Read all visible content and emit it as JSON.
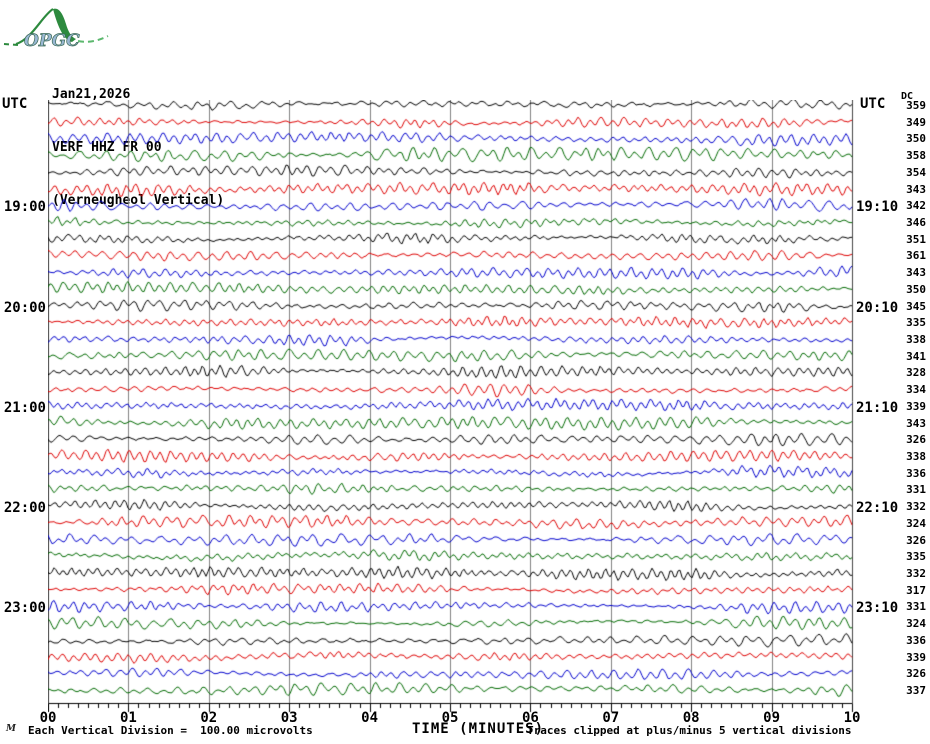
{
  "logo": {
    "text": "OPGC"
  },
  "header": {
    "date": "Jan21,2026",
    "station": "VERF HHZ FR 00",
    "description": "(Verneugheol Vertical)"
  },
  "left_axis": {
    "label": "UTC",
    "hour_labels": [
      {
        "row": 6,
        "text": "19:00"
      },
      {
        "row": 12,
        "text": "20:00"
      },
      {
        "row": 18,
        "text": "21:00"
      },
      {
        "row": 24,
        "text": "22:00"
      },
      {
        "row": 30,
        "text": "23:00"
      }
    ]
  },
  "right_axis": {
    "label": "UTC",
    "dc_label": "DC",
    "hour_labels": [
      {
        "row": 6,
        "text": "19:10"
      },
      {
        "row": 12,
        "text": "20:10"
      },
      {
        "row": 18,
        "text": "21:10"
      },
      {
        "row": 24,
        "text": "22:10"
      },
      {
        "row": 30,
        "text": "23:10"
      }
    ]
  },
  "x_axis": {
    "title": "TIME (MINUTES)",
    "tick_labels": [
      "00",
      "01",
      "02",
      "03",
      "04",
      "05",
      "06",
      "07",
      "08",
      "09",
      "10"
    ],
    "minor_ticks_per_division": 7
  },
  "footer": {
    "corner_mark": "M",
    "scale_note": "Each Vertical Division =  100.00 microvolts",
    "clip_note": "Traces clipped at plus/minus 5 vertical divisions"
  },
  "chart_data": {
    "type": "line",
    "subtype": "helicorder-seismogram",
    "title": "VERF HHZ FR 00 (Verneugheol Vertical) Jan21,2026",
    "xlabel": "TIME (MINUTES)",
    "x_range_minutes": [
      0,
      10
    ],
    "minutes_per_trace": 10,
    "num_traces": 36,
    "grid": true,
    "grid_color": "#808080",
    "vertical_division_microvolts": 100.0,
    "clip_divisions": 5,
    "trace_color_cycle": [
      "#000000",
      "#dd0000",
      "#0000cc",
      "#006a00"
    ],
    "traces": [
      {
        "start_utc": "18:00",
        "dc": 359,
        "color": "black"
      },
      {
        "start_utc": "18:10",
        "dc": 349,
        "color": "red"
      },
      {
        "start_utc": "18:20",
        "dc": 350,
        "color": "blue"
      },
      {
        "start_utc": "18:30",
        "dc": 358,
        "color": "green"
      },
      {
        "start_utc": "18:40",
        "dc": 354,
        "color": "black"
      },
      {
        "start_utc": "18:50",
        "dc": 343,
        "color": "red"
      },
      {
        "start_utc": "19:00",
        "dc": 342,
        "color": "blue"
      },
      {
        "start_utc": "19:10",
        "dc": 346,
        "color": "green"
      },
      {
        "start_utc": "19:20",
        "dc": 351,
        "color": "black"
      },
      {
        "start_utc": "19:30",
        "dc": 361,
        "color": "red"
      },
      {
        "start_utc": "19:40",
        "dc": 343,
        "color": "blue"
      },
      {
        "start_utc": "19:50",
        "dc": 350,
        "color": "green"
      },
      {
        "start_utc": "20:00",
        "dc": 345,
        "color": "black"
      },
      {
        "start_utc": "20:10",
        "dc": 335,
        "color": "red"
      },
      {
        "start_utc": "20:20",
        "dc": 338,
        "color": "blue"
      },
      {
        "start_utc": "20:30",
        "dc": 341,
        "color": "green"
      },
      {
        "start_utc": "20:40",
        "dc": 328,
        "color": "black"
      },
      {
        "start_utc": "20:50",
        "dc": 334,
        "color": "red"
      },
      {
        "start_utc": "21:00",
        "dc": 339,
        "color": "blue"
      },
      {
        "start_utc": "21:10",
        "dc": 343,
        "color": "green"
      },
      {
        "start_utc": "21:20",
        "dc": 326,
        "color": "black"
      },
      {
        "start_utc": "21:30",
        "dc": 338,
        "color": "red"
      },
      {
        "start_utc": "21:40",
        "dc": 336,
        "color": "blue"
      },
      {
        "start_utc": "21:50",
        "dc": 331,
        "color": "green"
      },
      {
        "start_utc": "22:00",
        "dc": 332,
        "color": "black"
      },
      {
        "start_utc": "22:10",
        "dc": 324,
        "color": "red"
      },
      {
        "start_utc": "22:20",
        "dc": 326,
        "color": "blue"
      },
      {
        "start_utc": "22:30",
        "dc": 335,
        "color": "green"
      },
      {
        "start_utc": "22:40",
        "dc": 332,
        "color": "black"
      },
      {
        "start_utc": "22:50",
        "dc": 317,
        "color": "red"
      },
      {
        "start_utc": "23:00",
        "dc": 331,
        "color": "blue"
      },
      {
        "start_utc": "23:10",
        "dc": 324,
        "color": "green"
      },
      {
        "start_utc": "23:20",
        "dc": 336,
        "color": "black"
      },
      {
        "start_utc": "23:30",
        "dc": 339,
        "color": "red"
      },
      {
        "start_utc": "23:40",
        "dc": 326,
        "color": "blue"
      },
      {
        "start_utc": "23:50",
        "dc": 337,
        "color": "green"
      }
    ]
  }
}
